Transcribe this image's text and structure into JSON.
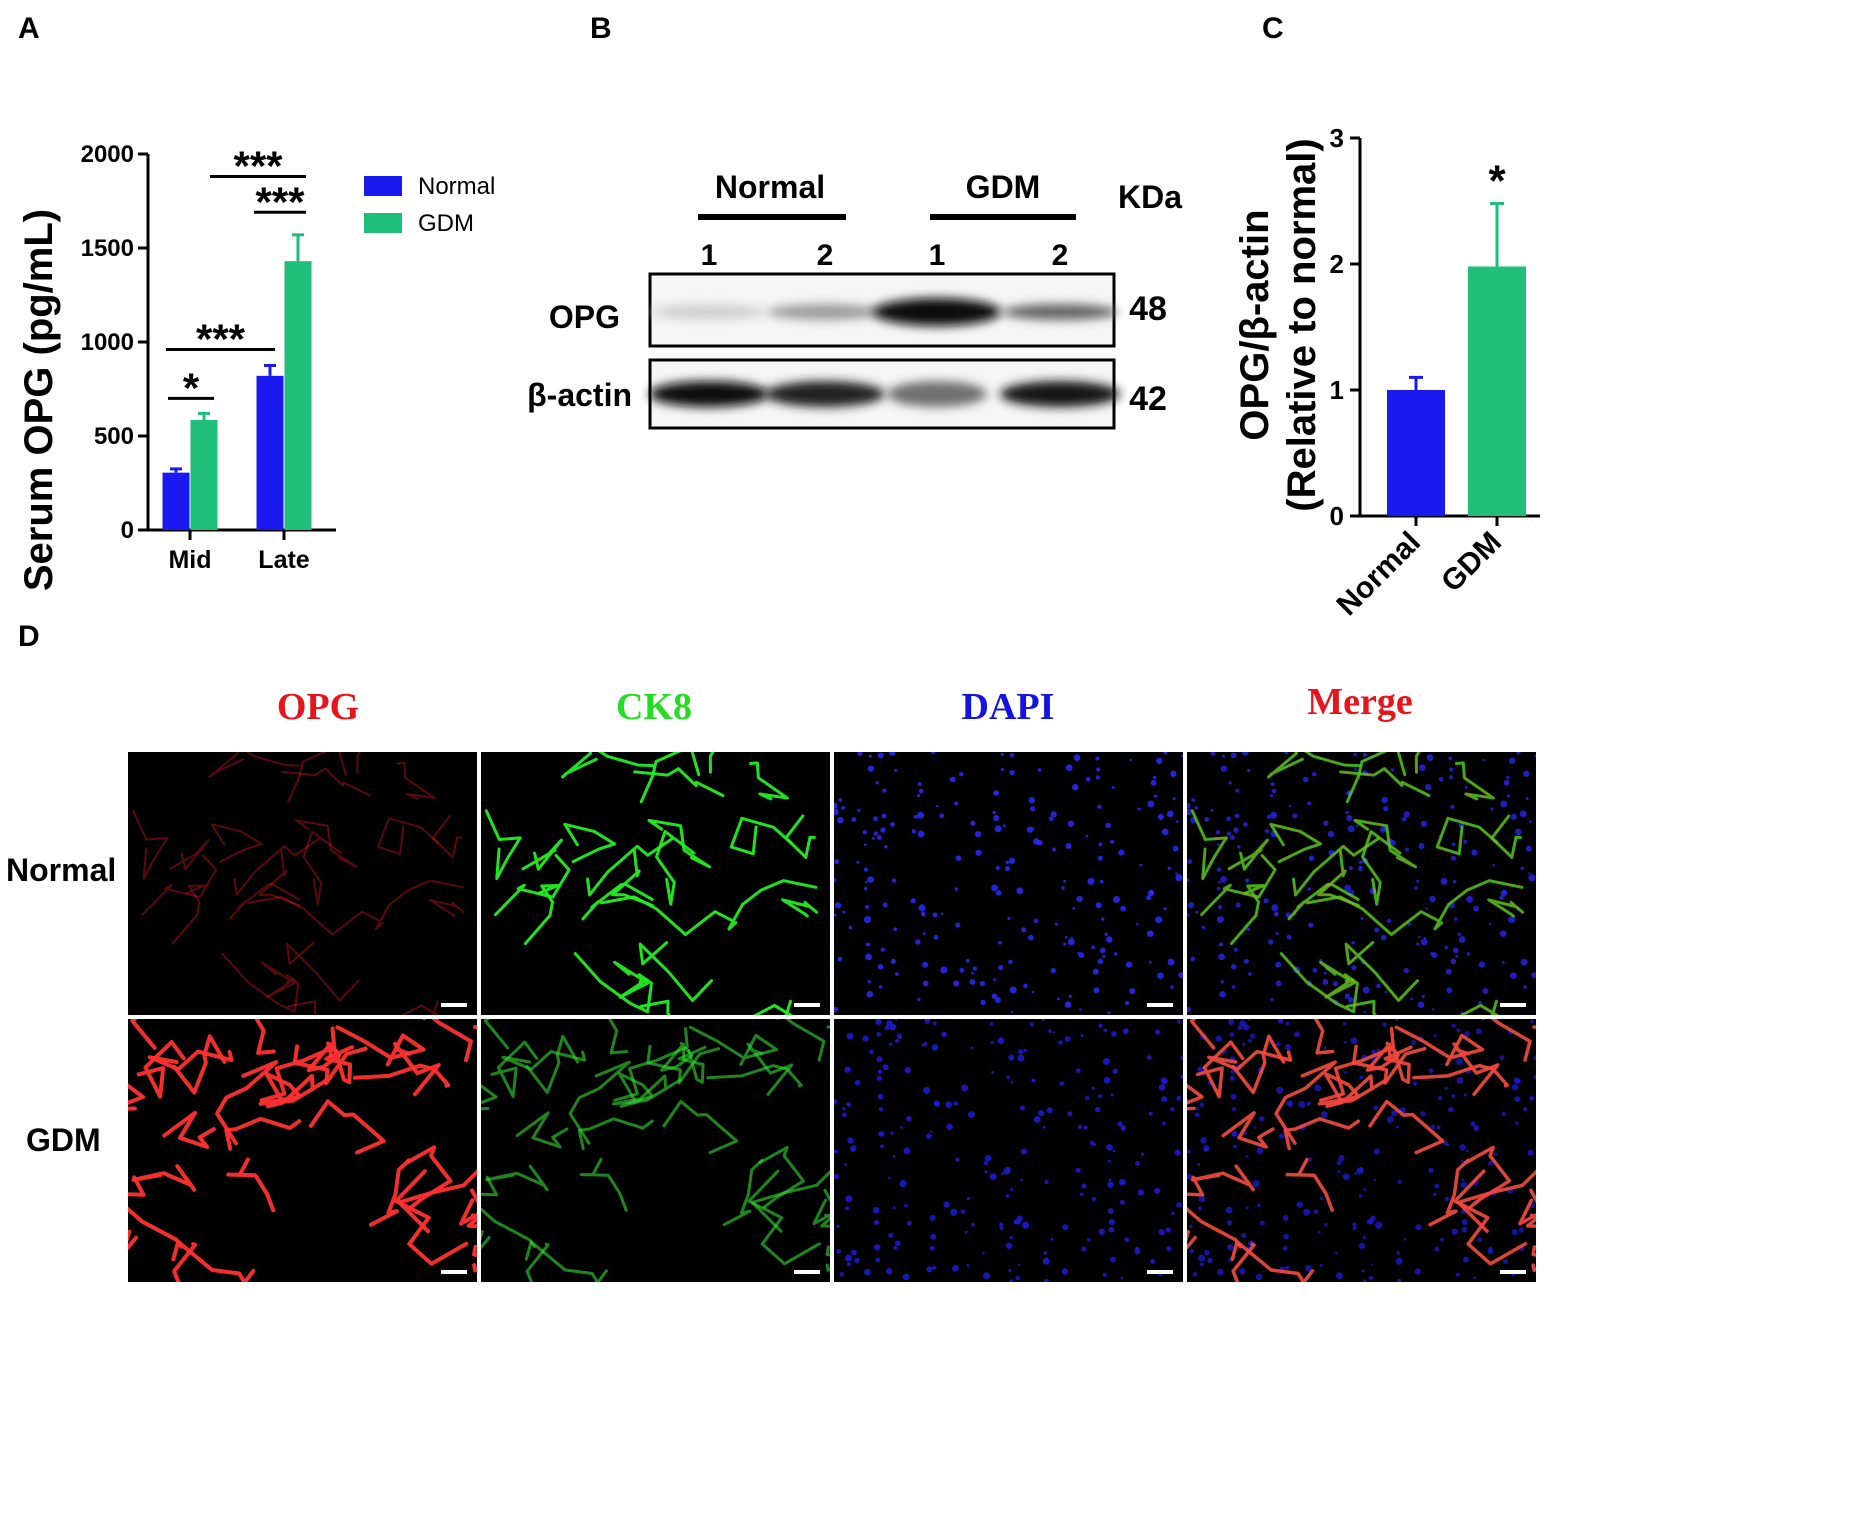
{
  "panels": {
    "a": "A",
    "b": "B",
    "c": "C",
    "d": "D"
  },
  "chart_data": [
    {
      "type": "bar",
      "panel": "A",
      "ylabel": "Serum OPG (pg/mL)",
      "categories": [
        "Mid",
        "Late"
      ],
      "ylim": [
        0,
        2000
      ],
      "yticks": [
        0,
        500,
        1000,
        1500,
        2000
      ],
      "ytick_labels": [
        "0",
        "500",
        "1000",
        "1500",
        "2000"
      ],
      "series": [
        {
          "name": "Normal",
          "color": "#1a1af0",
          "values": [
            305,
            820
          ],
          "errors": [
            20,
            55
          ]
        },
        {
          "name": "GDM",
          "color": "#1fbf7a",
          "values": [
            585,
            1430
          ],
          "errors": [
            35,
            140
          ]
        }
      ],
      "legend": "top-right",
      "significance": [
        {
          "label": "*",
          "between": "Mid Normal vs Mid GDM"
        },
        {
          "label": "***",
          "between": "Mid Normal vs Late Normal"
        },
        {
          "label": "***",
          "between": "Late Normal vs Late GDM"
        },
        {
          "label": "***",
          "between": "Mid GDM vs Late GDM"
        }
      ]
    },
    {
      "type": "bar",
      "panel": "C",
      "ylabel_line1": "OPG/β-actin",
      "ylabel_line2": "(Relative to normal)",
      "categories": [
        "Normal",
        "GDM"
      ],
      "values": [
        1.0,
        1.98
      ],
      "errors": [
        0.1,
        0.5
      ],
      "colors": [
        "#1a1af0",
        "#1fbf7a"
      ],
      "ylim": [
        0,
        3
      ],
      "yticks": [
        0,
        1,
        2,
        3
      ],
      "ytick_labels": [
        "0",
        "1",
        "2",
        "3"
      ],
      "significance": [
        {
          "label": "*",
          "over": "GDM"
        }
      ]
    }
  ],
  "blot": {
    "groups": [
      "Normal",
      "GDM"
    ],
    "lanes": [
      "1",
      "2",
      "1",
      "2"
    ],
    "kda_label": "KDa",
    "rows": [
      {
        "label": "OPG",
        "kda": "48",
        "band_intensity": [
          0.12,
          0.35,
          1.0,
          0.6
        ]
      },
      {
        "label": "β-actin",
        "kda": "42",
        "band_intensity": [
          1.0,
          0.9,
          0.55,
          0.95
        ]
      }
    ]
  },
  "if_panel": {
    "columns": [
      {
        "label": "OPG",
        "color": "#e8141c"
      },
      {
        "label": "CK8",
        "color": "#22dd22"
      },
      {
        "label": "DAPI",
        "color": "#1414e0"
      },
      {
        "label": "Merge",
        "color": "#e8141c"
      }
    ],
    "rows": [
      "Normal",
      "GDM"
    ]
  }
}
